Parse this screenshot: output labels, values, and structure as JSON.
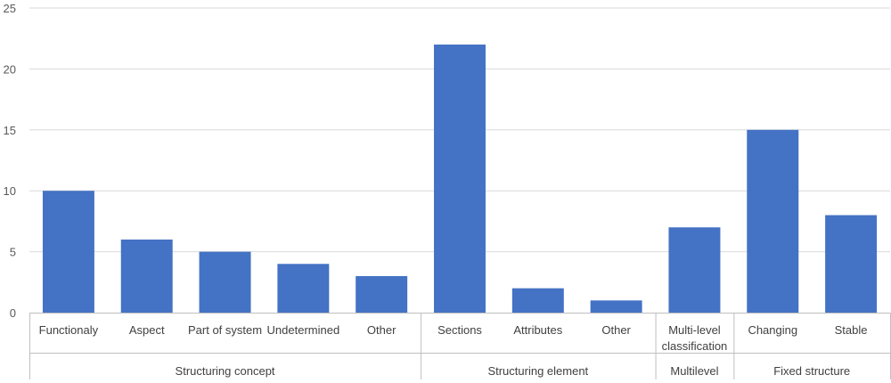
{
  "chart_data": {
    "type": "bar",
    "title": "",
    "xlabel": "",
    "ylabel": "",
    "ylim": [
      0,
      25
    ],
    "yticks": [
      0,
      5,
      10,
      15,
      20,
      25
    ],
    "grid": "horizontal",
    "legend": "none",
    "bar_color": "#4472C4",
    "categories": [
      [
        "Functionaly"
      ],
      [
        "Aspect"
      ],
      [
        "Part of system"
      ],
      [
        "Undetermined"
      ],
      [
        "Other"
      ],
      [
        "Sections"
      ],
      [
        "Attributes"
      ],
      [
        "Other"
      ],
      [
        "Multi-level",
        "classification"
      ],
      [
        "Changing"
      ],
      [
        "Stable"
      ]
    ],
    "values": [
      10,
      6,
      5,
      4,
      3,
      22,
      2,
      1,
      7,
      15,
      8
    ],
    "groups": [
      {
        "label": "Structuring concept",
        "start": 0,
        "end": 4
      },
      {
        "label": "Structuring element",
        "start": 5,
        "end": 7
      },
      {
        "label": "Multilevel",
        "start": 8,
        "end": 8
      },
      {
        "label": "Fixed structure",
        "start": 9,
        "end": 10
      }
    ]
  }
}
